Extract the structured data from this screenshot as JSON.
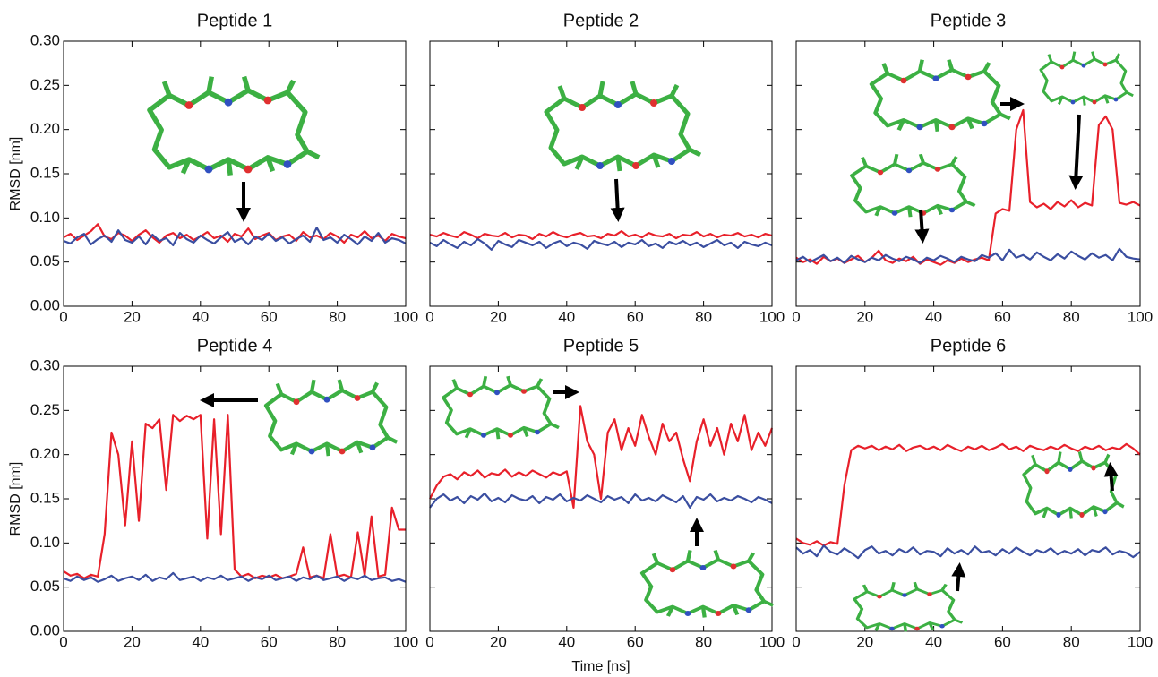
{
  "chart_data": [
    {
      "type": "line",
      "title": "Peptide 1",
      "ylabel": "RMSD [nm]",
      "x": [
        0,
        2,
        4,
        6,
        8,
        10,
        12,
        14,
        16,
        18,
        20,
        22,
        24,
        26,
        28,
        30,
        32,
        34,
        36,
        38,
        40,
        42,
        44,
        46,
        48,
        50,
        52,
        54,
        56,
        58,
        60,
        62,
        64,
        66,
        68,
        70,
        72,
        74,
        76,
        78,
        80,
        82,
        84,
        86,
        88,
        90,
        92,
        94,
        96,
        98,
        100
      ],
      "series": [
        {
          "color": "#e8202a",
          "values": [
            0.078,
            0.082,
            0.075,
            0.08,
            0.085,
            0.093,
            0.079,
            0.076,
            0.083,
            0.08,
            0.074,
            0.081,
            0.086,
            0.078,
            0.072,
            0.08,
            0.083,
            0.077,
            0.081,
            0.075,
            0.079,
            0.084,
            0.077,
            0.08,
            0.073,
            0.082,
            0.079,
            0.088,
            0.076,
            0.08,
            0.083,
            0.075,
            0.079,
            0.081,
            0.074,
            0.084,
            0.078,
            0.08,
            0.076,
            0.083,
            0.079,
            0.072,
            0.081,
            0.078,
            0.085,
            0.077,
            0.08,
            0.074,
            0.082,
            0.079,
            0.077
          ]
        },
        {
          "color": "#3a4ea0",
          "values": [
            0.074,
            0.071,
            0.078,
            0.082,
            0.07,
            0.076,
            0.08,
            0.073,
            0.086,
            0.075,
            0.072,
            0.079,
            0.07,
            0.081,
            0.074,
            0.077,
            0.069,
            0.083,
            0.076,
            0.072,
            0.08,
            0.075,
            0.071,
            0.078,
            0.084,
            0.073,
            0.077,
            0.07,
            0.079,
            0.075,
            0.082,
            0.074,
            0.078,
            0.071,
            0.076,
            0.08,
            0.073,
            0.089,
            0.075,
            0.078,
            0.072,
            0.081,
            0.076,
            0.07,
            0.079,
            0.074,
            0.083,
            0.072,
            0.077,
            0.075,
            0.071
          ]
        }
      ],
      "xlim": [
        0,
        100
      ],
      "xticks": [
        0,
        20,
        40,
        60,
        80,
        100
      ],
      "ylim": [
        0,
        0.3
      ],
      "yticks": [
        {
          "value": 0,
          "label": "0.00"
        },
        0.05,
        {
          "value": 0.1,
          "label": "0.10"
        },
        0.15,
        {
          "value": 0.2,
          "label": "0.20"
        },
        0.25,
        {
          "value": 0.3,
          "label": "0.30"
        }
      ],
      "ytick_labels": true
    },
    {
      "type": "line",
      "title": "Peptide 2",
      "x": [
        0,
        2,
        4,
        6,
        8,
        10,
        12,
        14,
        16,
        18,
        20,
        22,
        24,
        26,
        28,
        30,
        32,
        34,
        36,
        38,
        40,
        42,
        44,
        46,
        48,
        50,
        52,
        54,
        56,
        58,
        60,
        62,
        64,
        66,
        68,
        70,
        72,
        74,
        76,
        78,
        80,
        82,
        84,
        86,
        88,
        90,
        92,
        94,
        96,
        98,
        100
      ],
      "series": [
        {
          "color": "#e8202a",
          "values": [
            0.081,
            0.079,
            0.083,
            0.08,
            0.078,
            0.084,
            0.081,
            0.077,
            0.082,
            0.08,
            0.079,
            0.083,
            0.078,
            0.081,
            0.08,
            0.076,
            0.082,
            0.079,
            0.084,
            0.08,
            0.078,
            0.081,
            0.083,
            0.079,
            0.08,
            0.077,
            0.082,
            0.08,
            0.085,
            0.079,
            0.081,
            0.078,
            0.083,
            0.08,
            0.079,
            0.082,
            0.077,
            0.081,
            0.08,
            0.084,
            0.079,
            0.082,
            0.078,
            0.081,
            0.08,
            0.083,
            0.079,
            0.081,
            0.078,
            0.082,
            0.08
          ]
        },
        {
          "color": "#3a4ea0",
          "values": [
            0.072,
            0.068,
            0.075,
            0.07,
            0.066,
            0.073,
            0.069,
            0.076,
            0.071,
            0.064,
            0.074,
            0.07,
            0.067,
            0.075,
            0.072,
            0.069,
            0.073,
            0.066,
            0.071,
            0.074,
            0.068,
            0.072,
            0.07,
            0.065,
            0.074,
            0.071,
            0.069,
            0.073,
            0.067,
            0.072,
            0.07,
            0.075,
            0.068,
            0.071,
            0.066,
            0.073,
            0.07,
            0.074,
            0.069,
            0.072,
            0.067,
            0.071,
            0.075,
            0.069,
            0.072,
            0.066,
            0.073,
            0.07,
            0.068,
            0.072,
            0.069
          ]
        }
      ],
      "xlim": [
        0,
        100
      ],
      "xticks": [
        0,
        20,
        40,
        60,
        80,
        100
      ],
      "ylim": [
        0,
        0.3
      ],
      "yticks": [
        0,
        0.05,
        0.1,
        0.15,
        0.2,
        0.25,
        0.3
      ],
      "ytick_labels": false
    },
    {
      "type": "line",
      "title": "Peptide 3",
      "x": [
        0,
        2,
        4,
        6,
        8,
        10,
        12,
        14,
        16,
        18,
        20,
        22,
        24,
        26,
        28,
        30,
        32,
        34,
        36,
        38,
        40,
        42,
        44,
        46,
        48,
        50,
        52,
        54,
        56,
        58,
        60,
        62,
        64,
        66,
        68,
        70,
        72,
        74,
        76,
        78,
        80,
        82,
        84,
        86,
        88,
        90,
        92,
        94,
        96,
        98,
        100
      ],
      "series": [
        {
          "color": "#e8202a",
          "values": [
            0.055,
            0.05,
            0.053,
            0.048,
            0.056,
            0.051,
            0.054,
            0.049,
            0.053,
            0.057,
            0.05,
            0.055,
            0.063,
            0.052,
            0.049,
            0.054,
            0.051,
            0.056,
            0.048,
            0.053,
            0.05,
            0.047,
            0.052,
            0.049,
            0.054,
            0.05,
            0.053,
            0.055,
            0.052,
            0.105,
            0.11,
            0.108,
            0.2,
            0.222,
            0.118,
            0.112,
            0.116,
            0.11,
            0.118,
            0.113,
            0.12,
            0.112,
            0.117,
            0.114,
            0.205,
            0.215,
            0.2,
            0.117,
            0.115,
            0.118,
            0.114
          ]
        },
        {
          "color": "#3a4ea0",
          "values": [
            0.052,
            0.056,
            0.05,
            0.054,
            0.058,
            0.051,
            0.055,
            0.049,
            0.057,
            0.053,
            0.05,
            0.055,
            0.052,
            0.058,
            0.054,
            0.051,
            0.056,
            0.053,
            0.049,
            0.055,
            0.052,
            0.057,
            0.054,
            0.05,
            0.056,
            0.053,
            0.051,
            0.058,
            0.055,
            0.06,
            0.052,
            0.064,
            0.055,
            0.058,
            0.053,
            0.061,
            0.056,
            0.052,
            0.059,
            0.054,
            0.062,
            0.057,
            0.053,
            0.06,
            0.055,
            0.058,
            0.052,
            0.065,
            0.056,
            0.054,
            0.053
          ]
        }
      ],
      "xlim": [
        0,
        100
      ],
      "xticks": [
        0,
        20,
        40,
        60,
        80,
        100
      ],
      "ylim": [
        0,
        0.3
      ],
      "yticks": [
        0,
        0.05,
        0.1,
        0.15,
        0.2,
        0.25,
        0.3
      ],
      "ytick_labels": false
    },
    {
      "type": "line",
      "title": "Peptide 4",
      "ylabel": "RMSD [nm]",
      "x": [
        0,
        2,
        4,
        6,
        8,
        10,
        12,
        14,
        16,
        18,
        20,
        22,
        24,
        26,
        28,
        30,
        32,
        34,
        36,
        38,
        40,
        42,
        44,
        46,
        48,
        50,
        52,
        54,
        56,
        58,
        60,
        62,
        64,
        66,
        68,
        70,
        72,
        74,
        76,
        78,
        80,
        82,
        84,
        86,
        88,
        90,
        92,
        94,
        96,
        98,
        100
      ],
      "series": [
        {
          "color": "#e8202a",
          "values": [
            0.068,
            0.063,
            0.065,
            0.06,
            0.064,
            0.062,
            0.11,
            0.225,
            0.2,
            0.12,
            0.215,
            0.125,
            0.235,
            0.23,
            0.24,
            0.16,
            0.245,
            0.238,
            0.244,
            0.24,
            0.245,
            0.105,
            0.24,
            0.11,
            0.245,
            0.07,
            0.062,
            0.065,
            0.06,
            0.063,
            0.061,
            0.064,
            0.06,
            0.062,
            0.065,
            0.095,
            0.061,
            0.063,
            0.06,
            0.11,
            0.062,
            0.064,
            0.061,
            0.112,
            0.063,
            0.13,
            0.062,
            0.064,
            0.14,
            0.115,
            0.115
          ]
        },
        {
          "color": "#3a4ea0",
          "values": [
            0.06,
            0.057,
            0.062,
            0.058,
            0.061,
            0.056,
            0.059,
            0.063,
            0.057,
            0.06,
            0.062,
            0.058,
            0.064,
            0.057,
            0.061,
            0.059,
            0.066,
            0.058,
            0.06,
            0.062,
            0.057,
            0.061,
            0.059,
            0.063,
            0.058,
            0.06,
            0.062,
            0.057,
            0.061,
            0.059,
            0.063,
            0.058,
            0.06,
            0.062,
            0.057,
            0.061,
            0.059,
            0.063,
            0.058,
            0.06,
            0.062,
            0.057,
            0.061,
            0.059,
            0.063,
            0.058,
            0.06,
            0.061,
            0.057,
            0.059,
            0.056
          ]
        }
      ],
      "xlim": [
        0,
        100
      ],
      "xticks": [
        0,
        20,
        40,
        60,
        80,
        100
      ],
      "ylim": [
        0,
        0.3
      ],
      "yticks": [
        {
          "value": 0,
          "label": "0.00"
        },
        0.05,
        {
          "value": 0.1,
          "label": "0.10"
        },
        0.15,
        {
          "value": 0.2,
          "label": "0.20"
        },
        0.25,
        {
          "value": 0.3,
          "label": "0.30"
        }
      ],
      "ytick_labels": true
    },
    {
      "type": "line",
      "title": "Peptide 5",
      "xlabel": "Time [ns]",
      "x": [
        0,
        2,
        4,
        6,
        8,
        10,
        12,
        14,
        16,
        18,
        20,
        22,
        24,
        26,
        28,
        30,
        32,
        34,
        36,
        38,
        40,
        42,
        44,
        46,
        48,
        50,
        52,
        54,
        56,
        58,
        60,
        62,
        64,
        66,
        68,
        70,
        72,
        74,
        76,
        78,
        80,
        82,
        84,
        86,
        88,
        90,
        92,
        94,
        96,
        98,
        100
      ],
      "series": [
        {
          "color": "#e8202a",
          "values": [
            0.15,
            0.165,
            0.175,
            0.178,
            0.172,
            0.18,
            0.176,
            0.182,
            0.174,
            0.179,
            0.177,
            0.183,
            0.175,
            0.18,
            0.176,
            0.182,
            0.178,
            0.174,
            0.18,
            0.177,
            0.181,
            0.14,
            0.255,
            0.215,
            0.2,
            0.15,
            0.225,
            0.24,
            0.205,
            0.23,
            0.21,
            0.245,
            0.22,
            0.2,
            0.235,
            0.215,
            0.225,
            0.195,
            0.17,
            0.215,
            0.24,
            0.21,
            0.23,
            0.2,
            0.235,
            0.215,
            0.245,
            0.205,
            0.225,
            0.21,
            0.23
          ]
        },
        {
          "color": "#3a4ea0",
          "values": [
            0.14,
            0.15,
            0.155,
            0.148,
            0.152,
            0.145,
            0.153,
            0.149,
            0.156,
            0.147,
            0.151,
            0.146,
            0.154,
            0.15,
            0.148,
            0.153,
            0.145,
            0.152,
            0.149,
            0.155,
            0.147,
            0.151,
            0.148,
            0.154,
            0.15,
            0.146,
            0.153,
            0.149,
            0.152,
            0.145,
            0.155,
            0.148,
            0.151,
            0.147,
            0.154,
            0.15,
            0.146,
            0.153,
            0.14,
            0.152,
            0.149,
            0.155,
            0.147,
            0.151,
            0.148,
            0.153,
            0.15,
            0.146,
            0.152,
            0.149,
            0.145
          ]
        }
      ],
      "xlim": [
        0,
        100
      ],
      "xticks": [
        0,
        20,
        40,
        60,
        80,
        100
      ],
      "ylim": [
        0,
        0.3
      ],
      "yticks": [
        0,
        0.05,
        0.1,
        0.15,
        0.2,
        0.25,
        0.3
      ],
      "ytick_labels": false
    },
    {
      "type": "line",
      "title": "Peptide 6",
      "x": [
        0,
        2,
        4,
        6,
        8,
        10,
        12,
        14,
        16,
        18,
        20,
        22,
        24,
        26,
        28,
        30,
        32,
        34,
        36,
        38,
        40,
        42,
        44,
        46,
        48,
        50,
        52,
        54,
        56,
        58,
        60,
        62,
        64,
        66,
        68,
        70,
        72,
        74,
        76,
        78,
        80,
        82,
        84,
        86,
        88,
        90,
        92,
        94,
        96,
        98,
        100
      ],
      "series": [
        {
          "color": "#e8202a",
          "values": [
            0.105,
            0.1,
            0.098,
            0.102,
            0.097,
            0.101,
            0.099,
            0.165,
            0.205,
            0.21,
            0.207,
            0.21,
            0.205,
            0.209,
            0.206,
            0.211,
            0.204,
            0.208,
            0.21,
            0.206,
            0.209,
            0.205,
            0.211,
            0.207,
            0.204,
            0.209,
            0.206,
            0.21,
            0.205,
            0.208,
            0.212,
            0.206,
            0.209,
            0.204,
            0.21,
            0.207,
            0.205,
            0.209,
            0.206,
            0.211,
            0.207,
            0.204,
            0.209,
            0.206,
            0.21,
            0.205,
            0.208,
            0.206,
            0.212,
            0.207,
            0.2
          ]
        },
        {
          "color": "#3a4ea0",
          "values": [
            0.095,
            0.088,
            0.092,
            0.085,
            0.097,
            0.09,
            0.087,
            0.094,
            0.089,
            0.083,
            0.092,
            0.096,
            0.088,
            0.091,
            0.086,
            0.093,
            0.089,
            0.095,
            0.087,
            0.091,
            0.09,
            0.085,
            0.094,
            0.088,
            0.092,
            0.087,
            0.096,
            0.089,
            0.091,
            0.086,
            0.093,
            0.088,
            0.095,
            0.09,
            0.086,
            0.092,
            0.089,
            0.094,
            0.087,
            0.091,
            0.088,
            0.093,
            0.086,
            0.092,
            0.09,
            0.095,
            0.087,
            0.091,
            0.089,
            0.084,
            0.09
          ]
        }
      ],
      "xlim": [
        0,
        100
      ],
      "xticks": [
        0,
        20,
        40,
        60,
        80,
        100
      ],
      "ylim": [
        0,
        0.3
      ],
      "yticks": [
        0,
        0.05,
        0.1,
        0.15,
        0.2,
        0.25,
        0.3
      ],
      "ytick_labels": false
    }
  ]
}
